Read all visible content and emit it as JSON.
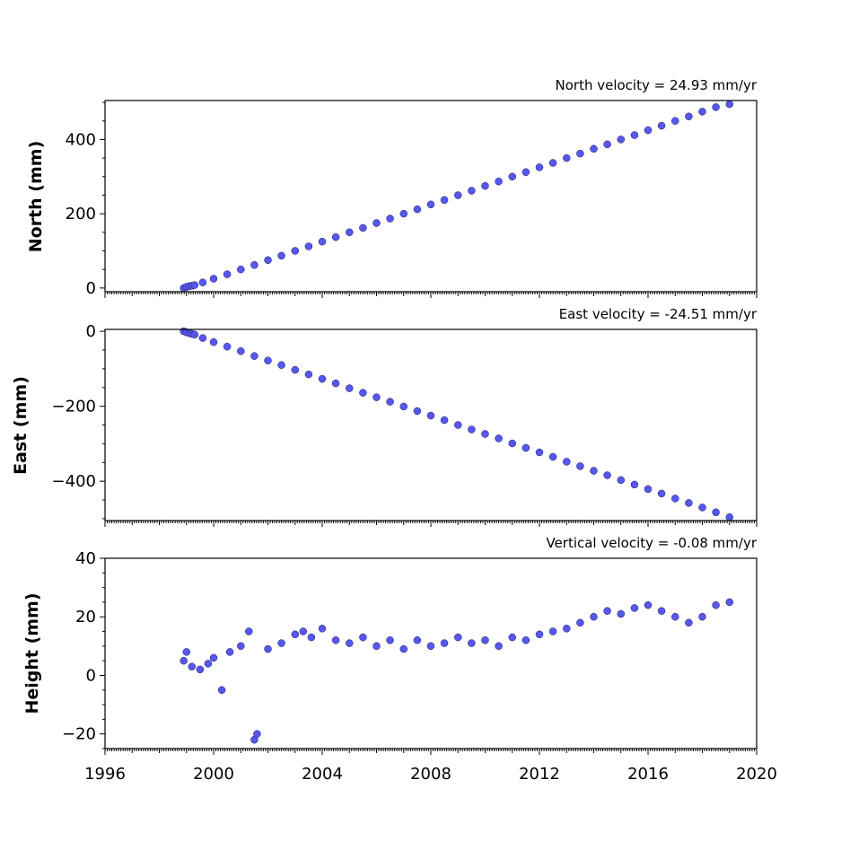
{
  "chart_data": [
    {
      "type": "scatter",
      "title": "North velocity = 24.93 mm/yr",
      "ylabel": "North (mm)",
      "xlabel": "",
      "xlim": [
        1996,
        2020
      ],
      "ylim": [
        -10,
        505
      ],
      "yticks": [
        0,
        200,
        400
      ],
      "ytick_labels": [
        "0",
        "200",
        "400"
      ],
      "series": [
        {
          "values_description": "",
          "x": [
            1998.9,
            1999.0,
            1999.1,
            1999.2,
            1999.3,
            1999.6,
            2000.0,
            2000.5,
            2001.0,
            2001.5,
            2002.0,
            2002.5,
            2003.0,
            2003.5,
            2004.0,
            2004.5,
            2005.0,
            2005.5,
            2006.0,
            2006.5,
            2007.0,
            2007.5,
            2008.0,
            2008.5,
            2009.0,
            2009.5,
            2010.0,
            2010.5,
            2011.0,
            2011.5,
            2012.0,
            2012.5,
            2013.0,
            2013.5,
            2014.0,
            2014.5,
            2015.0,
            2015.5,
            2016.0,
            2016.5,
            2017.0,
            2017.5,
            2018.0,
            2018.5,
            2019.0
          ],
          "y": [
            0,
            3,
            5,
            6,
            8,
            15,
            25,
            37,
            50,
            62,
            75,
            87,
            100,
            112,
            125,
            137,
            150,
            162,
            175,
            187,
            200,
            212,
            225,
            237,
            250,
            262,
            275,
            287,
            300,
            312,
            325,
            337,
            350,
            362,
            375,
            387,
            400,
            412,
            425,
            437,
            450,
            462,
            475,
            487,
            495
          ]
        }
      ]
    },
    {
      "type": "scatter",
      "title": "East velocity = -24.51 mm/yr",
      "ylabel": "East (mm)",
      "xlabel": "",
      "xlim": [
        1996,
        2020
      ],
      "ylim": [
        -505,
        5
      ],
      "yticks": [
        0,
        -200,
        -400
      ],
      "ytick_labels": [
        "0",
        "−200",
        "−400"
      ],
      "series": [
        {
          "x": [
            1998.9,
            1999.0,
            1999.1,
            1999.2,
            1999.3,
            1999.6,
            2000.0,
            2000.5,
            2001.0,
            2001.5,
            2002.0,
            2002.5,
            2003.0,
            2003.5,
            2004.0,
            2004.5,
            2005.0,
            2005.5,
            2006.0,
            2006.5,
            2007.0,
            2007.5,
            2008.0,
            2008.5,
            2009.0,
            2009.5,
            2010.0,
            2010.5,
            2011.0,
            2011.5,
            2012.0,
            2012.5,
            2013.0,
            2013.5,
            2014.0,
            2014.5,
            2015.0,
            2015.5,
            2016.0,
            2016.5,
            2017.0,
            2017.5,
            2018.0,
            2018.5,
            2019.0
          ],
          "y": [
            0,
            -3,
            -5,
            -7,
            -9,
            -18,
            -29,
            -41,
            -53,
            -66,
            -78,
            -90,
            -103,
            -115,
            -127,
            -139,
            -152,
            -164,
            -176,
            -188,
            -201,
            -213,
            -225,
            -237,
            -250,
            -262,
            -274,
            -286,
            -299,
            -311,
            -323,
            -335,
            -348,
            -360,
            -372,
            -384,
            -397,
            -409,
            -421,
            -433,
            -446,
            -458,
            -470,
            -483,
            -496
          ]
        }
      ]
    },
    {
      "type": "scatter",
      "title": "Vertical velocity = -0.08 mm/yr",
      "ylabel": "Height (mm)",
      "xlabel": "",
      "xlim": [
        1996,
        2020
      ],
      "ylim": [
        -25,
        40
      ],
      "yticks": [
        40,
        20,
        0,
        -20
      ],
      "ytick_labels": [
        "40",
        "20",
        "0",
        "−20"
      ],
      "series": [
        {
          "x": [
            1998.9,
            1999.0,
            1999.2,
            1999.5,
            1999.8,
            2000.0,
            2000.3,
            2000.6,
            2001.0,
            2001.3,
            2001.5,
            2001.6,
            2002.0,
            2002.5,
            2003.0,
            2003.3,
            2003.6,
            2004.0,
            2004.5,
            2005.0,
            2005.5,
            2006.0,
            2006.5,
            2007.0,
            2007.5,
            2008.0,
            2008.5,
            2009.0,
            2009.5,
            2010.0,
            2010.5,
            2011.0,
            2011.5,
            2012.0,
            2012.5,
            2013.0,
            2013.5,
            2014.0,
            2014.5,
            2015.0,
            2015.5,
            2016.0,
            2016.5,
            2017.0,
            2017.5,
            2018.0,
            2018.5,
            2019.0
          ],
          "y": [
            5,
            8,
            3,
            2,
            4,
            6,
            -5,
            8,
            10,
            15,
            -22,
            -20,
            9,
            11,
            14,
            15,
            13,
            16,
            12,
            11,
            13,
            10,
            12,
            9,
            12,
            10,
            11,
            13,
            11,
            12,
            10,
            13,
            12,
            14,
            15,
            16,
            18,
            20,
            22,
            21,
            23,
            24,
            22,
            20,
            18,
            20,
            24,
            25
          ]
        }
      ]
    }
  ],
  "x_tick_labels": [
    "1996",
    "2000",
    "2004",
    "2008",
    "2012",
    "2016",
    "2020"
  ]
}
